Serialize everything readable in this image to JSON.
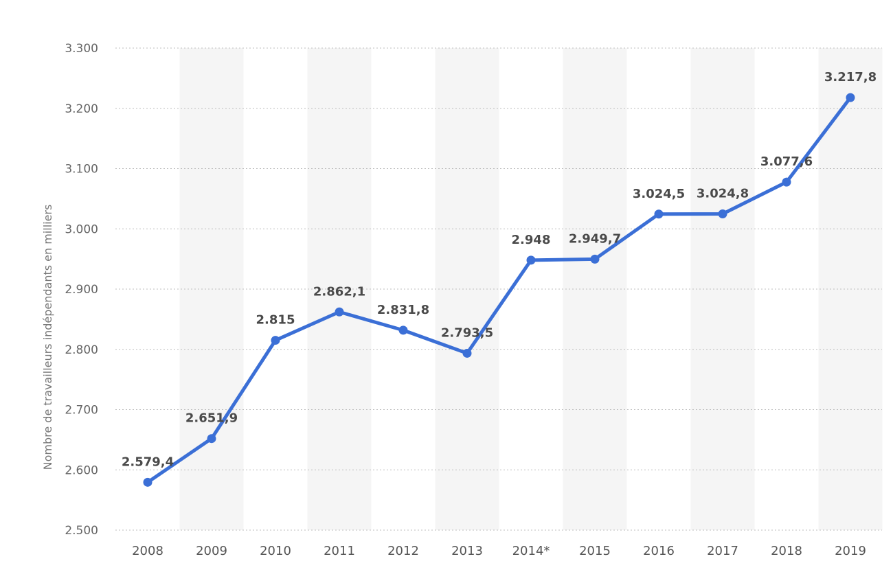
{
  "chart_data": {
    "type": "line",
    "xlabel": "",
    "ylabel": "Nombre de travailleurs indépendants en milliers",
    "ylim": [
      2500,
      3300
    ],
    "yticks": [
      2500,
      2600,
      2700,
      2800,
      2900,
      3000,
      3100,
      3200,
      3300
    ],
    "ytick_labels": [
      "2.500",
      "2.600",
      "2.700",
      "2.800",
      "2.900",
      "3.000",
      "3.100",
      "3.200",
      "3.300"
    ],
    "categories": [
      "2008",
      "2009",
      "2010",
      "2011",
      "2012",
      "2013",
      "2014*",
      "2015",
      "2016",
      "2017",
      "2018",
      "2019"
    ],
    "series": [
      {
        "values": [
          2579.4,
          2651.9,
          2815,
          2862.1,
          2831.8,
          2793.5,
          2948,
          2949.7,
          3024.5,
          3024.8,
          3077.6,
          3217.8
        ],
        "labels": [
          "2.579,4",
          "2.651,9",
          "2.815",
          "2.862,1",
          "2.831,8",
          "2.793,5",
          "2.948",
          "2.949,7",
          "3.024,5",
          "3.024,8",
          "3.077,6",
          "3.217,8"
        ],
        "color": "#3b6fd6"
      }
    ],
    "grid": true,
    "alternating_bands": true,
    "band_color": "#f5f5f5",
    "grid_color": "#bdbdbd",
    "data_labels": true
  }
}
